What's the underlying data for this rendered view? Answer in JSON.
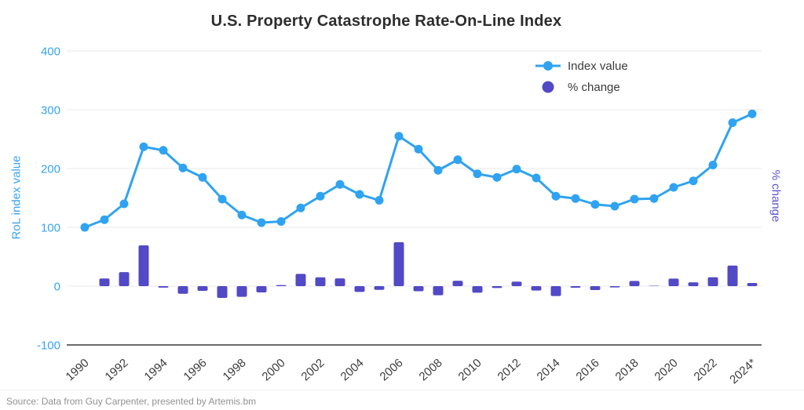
{
  "title": "U.S. Property Catastrophe Rate-On-Line Index",
  "source": "Source: Data from Guy Carpenter, presented by Artemis.bm",
  "legend": {
    "items": [
      {
        "label": "Index value",
        "marker": "line-dot"
      },
      {
        "label": "% change",
        "marker": "dot"
      }
    ]
  },
  "colors": {
    "line": "#2fa3f1",
    "bar": "#5249c6",
    "left_axis_text": "#38a3f4",
    "right_axis_text": "#5e54d2",
    "grid": "#e9e9e9",
    "axis_line": "#3a3a3a",
    "x_tick_text": "#3d3d3d",
    "title_text": "#2d2d2d",
    "source_text": "#919191"
  },
  "chart_data": {
    "type": "line+bar",
    "title": "U.S. Property Catastrophe Rate-On-Line Index",
    "x": [
      1990,
      1991,
      1992,
      1993,
      1994,
      1995,
      1996,
      1997,
      1998,
      1999,
      2000,
      2001,
      2002,
      2003,
      2004,
      2005,
      2006,
      2007,
      2008,
      2009,
      2010,
      2011,
      2012,
      2013,
      2014,
      2015,
      2016,
      2017,
      2018,
      2019,
      2020,
      2021,
      2022,
      2023,
      2024
    ],
    "x_tick_labels": [
      "1990",
      "1992",
      "1994",
      "1996",
      "1998",
      "2000",
      "2002",
      "2004",
      "2006",
      "2008",
      "2010",
      "2012",
      "2014",
      "2016",
      "2018",
      "2020",
      "2022",
      "2024*"
    ],
    "series": [
      {
        "name": "Index value",
        "type": "line",
        "values": [
          100,
          113,
          140,
          237,
          231,
          201,
          185,
          148,
          121,
          108,
          110,
          133,
          153,
          173,
          156,
          146,
          255,
          233,
          197,
          215,
          191,
          185,
          199,
          184,
          153,
          149,
          139,
          136,
          148,
          149,
          168,
          179,
          206,
          278,
          293
        ]
      },
      {
        "name": "% change",
        "type": "bar",
        "values": [
          null,
          13.0,
          23.9,
          69.3,
          -2.5,
          -13.0,
          -8.0,
          -20.0,
          -18.2,
          -10.7,
          1.9,
          20.9,
          15.0,
          13.1,
          -9.8,
          -6.4,
          74.7,
          -8.6,
          -15.5,
          9.1,
          -11.2,
          -3.1,
          7.6,
          -7.5,
          -16.8,
          -2.6,
          -6.7,
          -2.2,
          8.8,
          0.7,
          12.8,
          6.5,
          15.1,
          35.0,
          5.4
        ]
      }
    ],
    "left_axis": {
      "label": "RoL index value",
      "ticks": [
        400,
        300,
        200,
        100,
        0,
        -100
      ],
      "range": [
        -100,
        400
      ]
    },
    "right_axis": {
      "label": "% change",
      "ticks": []
    },
    "grid": true,
    "legend_position": "top-right-inside"
  }
}
